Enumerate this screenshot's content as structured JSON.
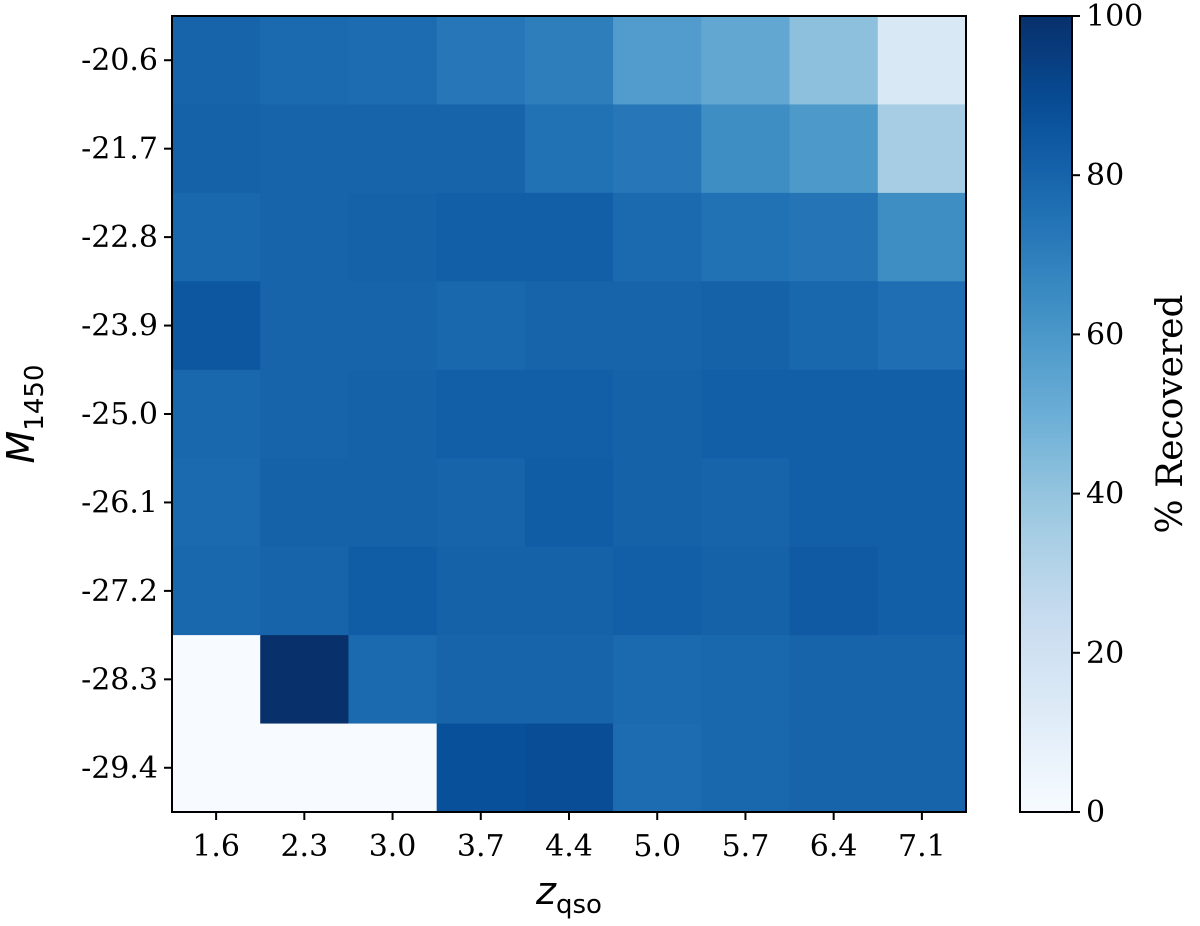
{
  "chart_data": {
    "type": "heatmap",
    "title": "",
    "x_ticks": [
      "1.6",
      "2.3",
      "3.0",
      "3.7",
      "4.4",
      "5.0",
      "5.7",
      "6.4",
      "7.1"
    ],
    "y_ticks": [
      "-20.6",
      "-21.7",
      "-22.8",
      "-23.9",
      "-25.0",
      "-26.1",
      "-27.2",
      "-28.3",
      "-29.4"
    ],
    "xlabel": {
      "base": "z",
      "sub": "qso"
    },
    "ylabel": {
      "base": "M",
      "sub": "1450"
    },
    "colorbar": {
      "label": "% Recovered",
      "range": [
        0,
        100
      ],
      "ticks": [
        "0",
        "20",
        "40",
        "60",
        "80",
        "100"
      ],
      "colormap": "Blues"
    },
    "values": [
      [
        80,
        78,
        77,
        73,
        70,
        58,
        53,
        42,
        15
      ],
      [
        81,
        80,
        80,
        80,
        75,
        73,
        64,
        59,
        35
      ],
      [
        79,
        80,
        81,
        82,
        82,
        78,
        75,
        74,
        64
      ],
      [
        85,
        80,
        80,
        79,
        80,
        80,
        81,
        79,
        76
      ],
      [
        79,
        80,
        81,
        82,
        82,
        81,
        82,
        82,
        82
      ],
      [
        78,
        81,
        81,
        80,
        83,
        81,
        80,
        82,
        82
      ],
      [
        79,
        80,
        83,
        81,
        81,
        82,
        81,
        84,
        82
      ],
      [
        0,
        100,
        78,
        80,
        80,
        78,
        79,
        80,
        80
      ],
      [
        0,
        0,
        0,
        88,
        89,
        77,
        79,
        80,
        80
      ]
    ]
  }
}
